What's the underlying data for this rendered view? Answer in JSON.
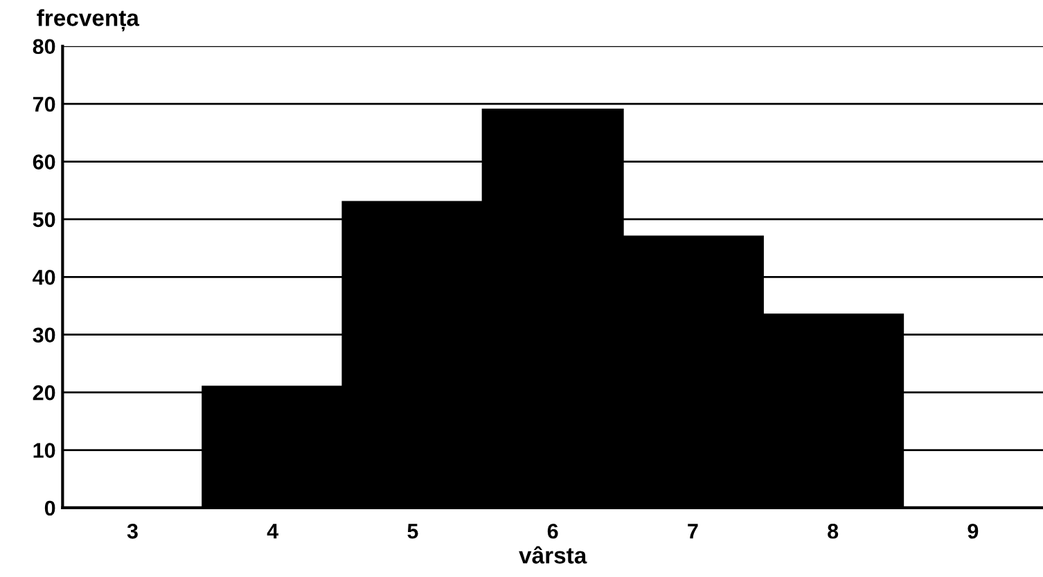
{
  "chart_data": {
    "type": "histogram",
    "bins": [
      3.5,
      4.5,
      5.5,
      6.5,
      7.5,
      8.5
    ],
    "values": [
      21,
      53,
      69,
      47,
      33.5
    ],
    "color": "#000000",
    "xlabel": "vârsta",
    "ylabel": "frecvența",
    "xlim": [
      2.5,
      9.5
    ],
    "xticks": [
      3,
      4,
      5,
      6,
      7,
      8,
      9
    ],
    "ylim": [
      0,
      80
    ],
    "yticks": [
      0,
      10,
      20,
      30,
      40,
      50,
      60,
      70,
      80
    ],
    "grid": "y"
  }
}
